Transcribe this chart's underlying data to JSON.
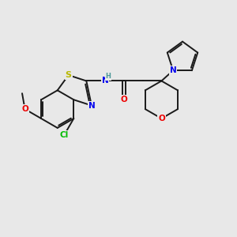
{
  "background_color": "#e8e8e8",
  "bond_color": "#1a1a1a",
  "atom_colors": {
    "S": "#b8b800",
    "N": "#0000ee",
    "O": "#ee0000",
    "Cl": "#00bb00",
    "NH": "#4d9999",
    "C": "#1a1a1a"
  },
  "figsize": [
    3.0,
    3.0
  ],
  "dpi": 100
}
